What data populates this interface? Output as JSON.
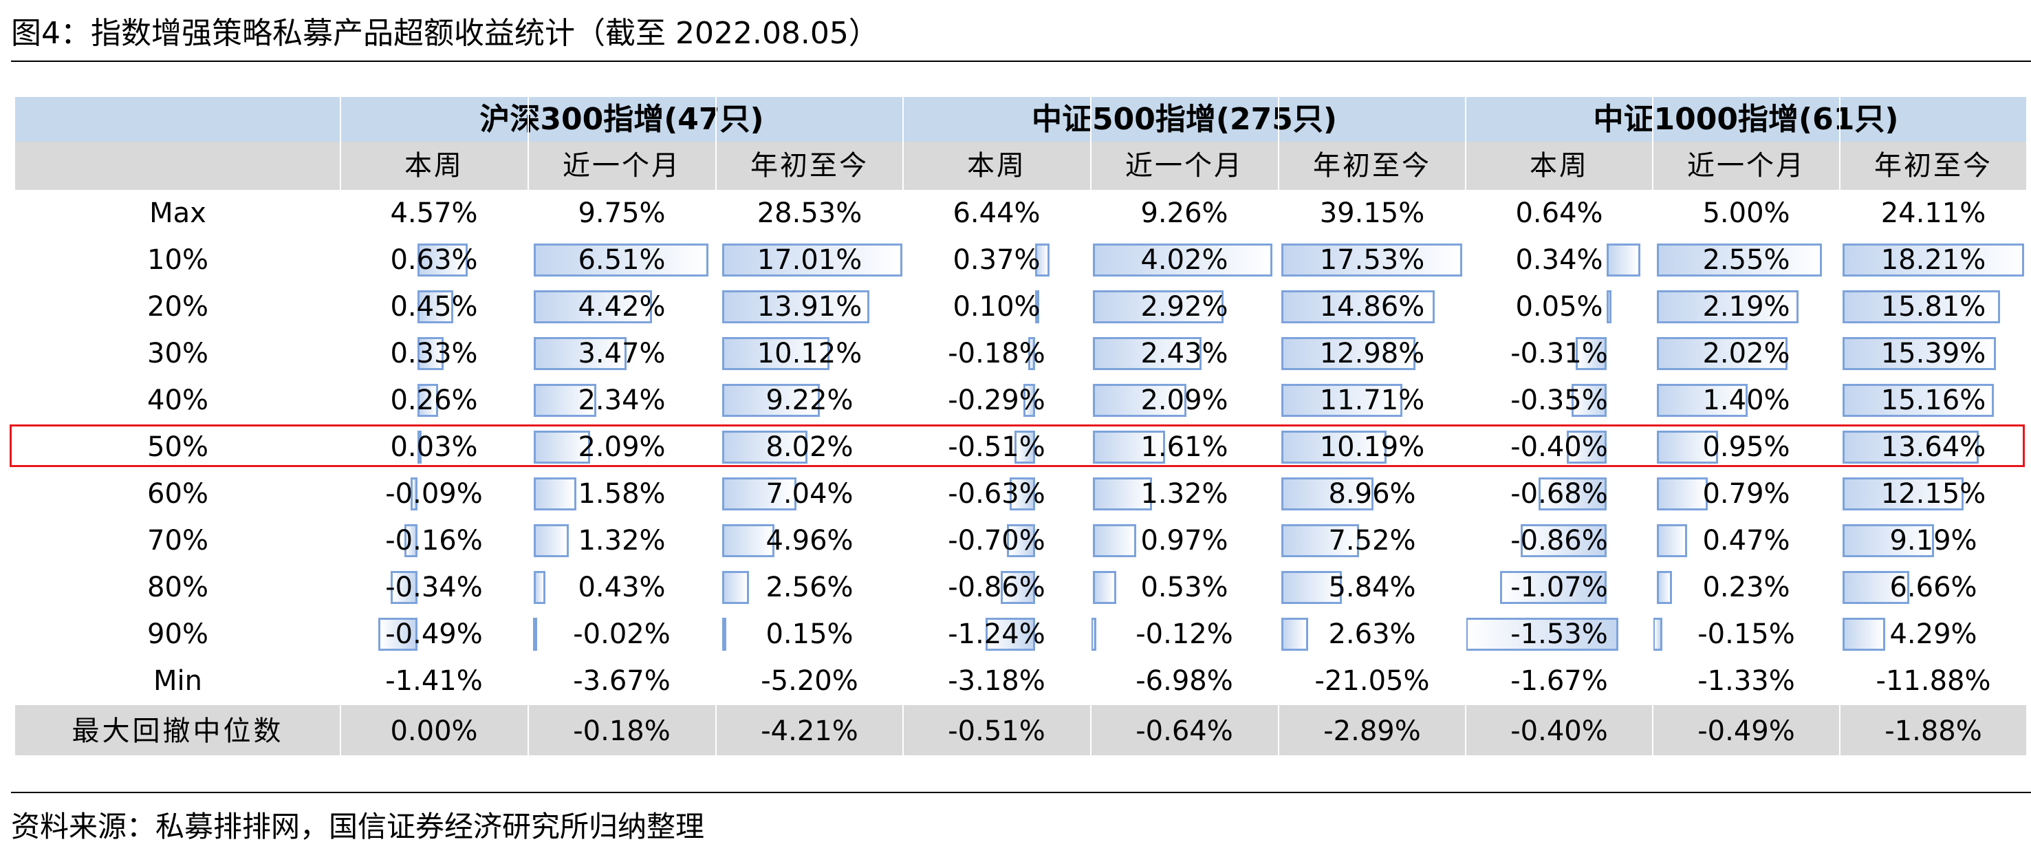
{
  "title": "图4：指数增强策略私募产品超额收益统计（截至 2022.08.05）",
  "source": "资料来源：私募排排网，国信证券经济研究所归纳整理",
  "highlight_row": "50%",
  "colors": {
    "header_group": "#c5d8ec",
    "header_sub": "#d9d9d9",
    "databar_border": "#7da3db",
    "highlight": "#e8161c"
  },
  "groups": [
    {
      "label": "沪深300指增(47只)"
    },
    {
      "label": "中证500指增(275只)"
    },
    {
      "label": "中证1000指增(61只)"
    }
  ],
  "columns": [
    "本周",
    "近一个月",
    "年初至今",
    "本周",
    "近一个月",
    "年初至今",
    "本周",
    "近一个月",
    "年初至今"
  ],
  "rows": [
    {
      "label": "Max",
      "values": [
        "4.57%",
        "9.75%",
        "28.53%",
        "6.44%",
        "9.26%",
        "39.15%",
        "0.64%",
        "5.00%",
        "24.11%"
      ]
    },
    {
      "label": "10%",
      "values": [
        "0.63%",
        "6.51%",
        "17.01%",
        "0.37%",
        "4.02%",
        "17.53%",
        "0.34%",
        "2.55%",
        "18.21%"
      ]
    },
    {
      "label": "20%",
      "values": [
        "0.45%",
        "4.42%",
        "13.91%",
        "0.10%",
        "2.92%",
        "14.86%",
        "0.05%",
        "2.19%",
        "15.81%"
      ]
    },
    {
      "label": "30%",
      "values": [
        "0.33%",
        "3.47%",
        "10.12%",
        "-0.18%",
        "2.43%",
        "12.98%",
        "-0.31%",
        "2.02%",
        "15.39%"
      ]
    },
    {
      "label": "40%",
      "values": [
        "0.26%",
        "2.34%",
        "9.22%",
        "-0.29%",
        "2.09%",
        "11.71%",
        "-0.35%",
        "1.40%",
        "15.16%"
      ]
    },
    {
      "label": "50%",
      "values": [
        "0.03%",
        "2.09%",
        "8.02%",
        "-0.51%",
        "1.61%",
        "10.19%",
        "-0.40%",
        "0.95%",
        "13.64%"
      ]
    },
    {
      "label": "60%",
      "values": [
        "-0.09%",
        "1.58%",
        "7.04%",
        "-0.63%",
        "1.32%",
        "8.96%",
        "-0.68%",
        "0.79%",
        "12.15%"
      ]
    },
    {
      "label": "70%",
      "values": [
        "-0.16%",
        "1.32%",
        "4.96%",
        "-0.70%",
        "0.97%",
        "7.52%",
        "-0.86%",
        "0.47%",
        "9.19%"
      ]
    },
    {
      "label": "80%",
      "values": [
        "-0.34%",
        "0.43%",
        "2.56%",
        "-0.86%",
        "0.53%",
        "5.84%",
        "-1.07%",
        "0.23%",
        "6.66%"
      ]
    },
    {
      "label": "90%",
      "values": [
        "-0.49%",
        "-0.02%",
        "0.15%",
        "-1.24%",
        "-0.12%",
        "2.63%",
        "-1.53%",
        "-0.15%",
        "4.29%"
      ]
    },
    {
      "label": "Min",
      "values": [
        "-1.41%",
        "-3.67%",
        "-5.20%",
        "-3.18%",
        "-6.98%",
        "-21.05%",
        "-1.67%",
        "-1.33%",
        "-11.88%"
      ]
    },
    {
      "label": "最大回撤中位数",
      "values": [
        "0.00%",
        "-0.18%",
        "-4.21%",
        "-0.51%",
        "-0.64%",
        "-2.89%",
        "-0.40%",
        "-0.49%",
        "-1.88%"
      ]
    }
  ]
}
